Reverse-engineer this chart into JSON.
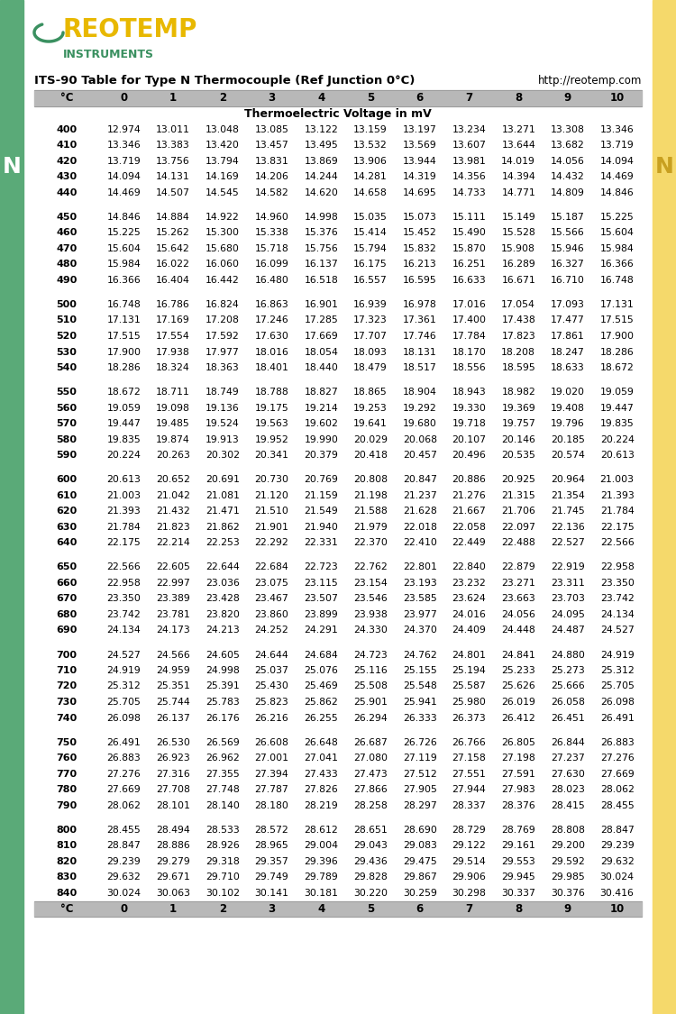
{
  "title": "ITS-90 Table for Type N Thermocouple (Ref Junction 0°C)",
  "url": "http://reotemp.com",
  "unit_header": "Thermoelectric Voltage in mV",
  "col_headers": [
    "°C",
    "0",
    "1",
    "2",
    "3",
    "4",
    "5",
    "6",
    "7",
    "8",
    "9",
    "10"
  ],
  "rows": [
    [
      400,
      12.974,
      13.011,
      13.048,
      13.085,
      13.122,
      13.159,
      13.197,
      13.234,
      13.271,
      13.308,
      13.346
    ],
    [
      410,
      13.346,
      13.383,
      13.42,
      13.457,
      13.495,
      13.532,
      13.569,
      13.607,
      13.644,
      13.682,
      13.719
    ],
    [
      420,
      13.719,
      13.756,
      13.794,
      13.831,
      13.869,
      13.906,
      13.944,
      13.981,
      14.019,
      14.056,
      14.094
    ],
    [
      430,
      14.094,
      14.131,
      14.169,
      14.206,
      14.244,
      14.281,
      14.319,
      14.356,
      14.394,
      14.432,
      14.469
    ],
    [
      440,
      14.469,
      14.507,
      14.545,
      14.582,
      14.62,
      14.658,
      14.695,
      14.733,
      14.771,
      14.809,
      14.846
    ],
    [
      450,
      14.846,
      14.884,
      14.922,
      14.96,
      14.998,
      15.035,
      15.073,
      15.111,
      15.149,
      15.187,
      15.225
    ],
    [
      460,
      15.225,
      15.262,
      15.3,
      15.338,
      15.376,
      15.414,
      15.452,
      15.49,
      15.528,
      15.566,
      15.604
    ],
    [
      470,
      15.604,
      15.642,
      15.68,
      15.718,
      15.756,
      15.794,
      15.832,
      15.87,
      15.908,
      15.946,
      15.984
    ],
    [
      480,
      15.984,
      16.022,
      16.06,
      16.099,
      16.137,
      16.175,
      16.213,
      16.251,
      16.289,
      16.327,
      16.366
    ],
    [
      490,
      16.366,
      16.404,
      16.442,
      16.48,
      16.518,
      16.557,
      16.595,
      16.633,
      16.671,
      16.71,
      16.748
    ],
    [
      500,
      16.748,
      16.786,
      16.824,
      16.863,
      16.901,
      16.939,
      16.978,
      17.016,
      17.054,
      17.093,
      17.131
    ],
    [
      510,
      17.131,
      17.169,
      17.208,
      17.246,
      17.285,
      17.323,
      17.361,
      17.4,
      17.438,
      17.477,
      17.515
    ],
    [
      520,
      17.515,
      17.554,
      17.592,
      17.63,
      17.669,
      17.707,
      17.746,
      17.784,
      17.823,
      17.861,
      17.9
    ],
    [
      530,
      17.9,
      17.938,
      17.977,
      18.016,
      18.054,
      18.093,
      18.131,
      18.17,
      18.208,
      18.247,
      18.286
    ],
    [
      540,
      18.286,
      18.324,
      18.363,
      18.401,
      18.44,
      18.479,
      18.517,
      18.556,
      18.595,
      18.633,
      18.672
    ],
    [
      550,
      18.672,
      18.711,
      18.749,
      18.788,
      18.827,
      18.865,
      18.904,
      18.943,
      18.982,
      19.02,
      19.059
    ],
    [
      560,
      19.059,
      19.098,
      19.136,
      19.175,
      19.214,
      19.253,
      19.292,
      19.33,
      19.369,
      19.408,
      19.447
    ],
    [
      570,
      19.447,
      19.485,
      19.524,
      19.563,
      19.602,
      19.641,
      19.68,
      19.718,
      19.757,
      19.796,
      19.835
    ],
    [
      580,
      19.835,
      19.874,
      19.913,
      19.952,
      19.99,
      20.029,
      20.068,
      20.107,
      20.146,
      20.185,
      20.224
    ],
    [
      590,
      20.224,
      20.263,
      20.302,
      20.341,
      20.379,
      20.418,
      20.457,
      20.496,
      20.535,
      20.574,
      20.613
    ],
    [
      600,
      20.613,
      20.652,
      20.691,
      20.73,
      20.769,
      20.808,
      20.847,
      20.886,
      20.925,
      20.964,
      21.003
    ],
    [
      610,
      21.003,
      21.042,
      21.081,
      21.12,
      21.159,
      21.198,
      21.237,
      21.276,
      21.315,
      21.354,
      21.393
    ],
    [
      620,
      21.393,
      21.432,
      21.471,
      21.51,
      21.549,
      21.588,
      21.628,
      21.667,
      21.706,
      21.745,
      21.784
    ],
    [
      630,
      21.784,
      21.823,
      21.862,
      21.901,
      21.94,
      21.979,
      22.018,
      22.058,
      22.097,
      22.136,
      22.175
    ],
    [
      640,
      22.175,
      22.214,
      22.253,
      22.292,
      22.331,
      22.37,
      22.41,
      22.449,
      22.488,
      22.527,
      22.566
    ],
    [
      650,
      22.566,
      22.605,
      22.644,
      22.684,
      22.723,
      22.762,
      22.801,
      22.84,
      22.879,
      22.919,
      22.958
    ],
    [
      660,
      22.958,
      22.997,
      23.036,
      23.075,
      23.115,
      23.154,
      23.193,
      23.232,
      23.271,
      23.311,
      23.35
    ],
    [
      670,
      23.35,
      23.389,
      23.428,
      23.467,
      23.507,
      23.546,
      23.585,
      23.624,
      23.663,
      23.703,
      23.742
    ],
    [
      680,
      23.742,
      23.781,
      23.82,
      23.86,
      23.899,
      23.938,
      23.977,
      24.016,
      24.056,
      24.095,
      24.134
    ],
    [
      690,
      24.134,
      24.173,
      24.213,
      24.252,
      24.291,
      24.33,
      24.37,
      24.409,
      24.448,
      24.487,
      24.527
    ],
    [
      700,
      24.527,
      24.566,
      24.605,
      24.644,
      24.684,
      24.723,
      24.762,
      24.801,
      24.841,
      24.88,
      24.919
    ],
    [
      710,
      24.919,
      24.959,
      24.998,
      25.037,
      25.076,
      25.116,
      25.155,
      25.194,
      25.233,
      25.273,
      25.312
    ],
    [
      720,
      25.312,
      25.351,
      25.391,
      25.43,
      25.469,
      25.508,
      25.548,
      25.587,
      25.626,
      25.666,
      25.705
    ],
    [
      730,
      25.705,
      25.744,
      25.783,
      25.823,
      25.862,
      25.901,
      25.941,
      25.98,
      26.019,
      26.058,
      26.098
    ],
    [
      740,
      26.098,
      26.137,
      26.176,
      26.216,
      26.255,
      26.294,
      26.333,
      26.373,
      26.412,
      26.451,
      26.491
    ],
    [
      750,
      26.491,
      26.53,
      26.569,
      26.608,
      26.648,
      26.687,
      26.726,
      26.766,
      26.805,
      26.844,
      26.883
    ],
    [
      760,
      26.883,
      26.923,
      26.962,
      27.001,
      27.041,
      27.08,
      27.119,
      27.158,
      27.198,
      27.237,
      27.276
    ],
    [
      770,
      27.276,
      27.316,
      27.355,
      27.394,
      27.433,
      27.473,
      27.512,
      27.551,
      27.591,
      27.63,
      27.669
    ],
    [
      780,
      27.669,
      27.708,
      27.748,
      27.787,
      27.826,
      27.866,
      27.905,
      27.944,
      27.983,
      28.023,
      28.062
    ],
    [
      790,
      28.062,
      28.101,
      28.14,
      28.18,
      28.219,
      28.258,
      28.297,
      28.337,
      28.376,
      28.415,
      28.455
    ],
    [
      800,
      28.455,
      28.494,
      28.533,
      28.572,
      28.612,
      28.651,
      28.69,
      28.729,
      28.769,
      28.808,
      28.847
    ],
    [
      810,
      28.847,
      28.886,
      28.926,
      28.965,
      29.004,
      29.043,
      29.083,
      29.122,
      29.161,
      29.2,
      29.239
    ],
    [
      820,
      29.239,
      29.279,
      29.318,
      29.357,
      29.396,
      29.436,
      29.475,
      29.514,
      29.553,
      29.592,
      29.632
    ],
    [
      830,
      29.632,
      29.671,
      29.71,
      29.749,
      29.789,
      29.828,
      29.867,
      29.906,
      29.945,
      29.985,
      30.024
    ],
    [
      840,
      30.024,
      30.063,
      30.102,
      30.141,
      30.181,
      30.22,
      30.259,
      30.298,
      30.337,
      30.376,
      30.416
    ]
  ],
  "group_breaks": [
    440,
    490,
    540,
    590,
    640,
    690,
    740,
    790
  ],
  "header_bg": "#b8b8b8",
  "green_side": "#5aaa78",
  "yellow_side": "#f5d96b",
  "logo_reotemp_color": "#e8b800",
  "logo_instruments_color": "#3a9060",
  "logo_arc_color": "#3a9060",
  "side_letter": "N",
  "fig_width": 7.5,
  "fig_height": 11.25
}
